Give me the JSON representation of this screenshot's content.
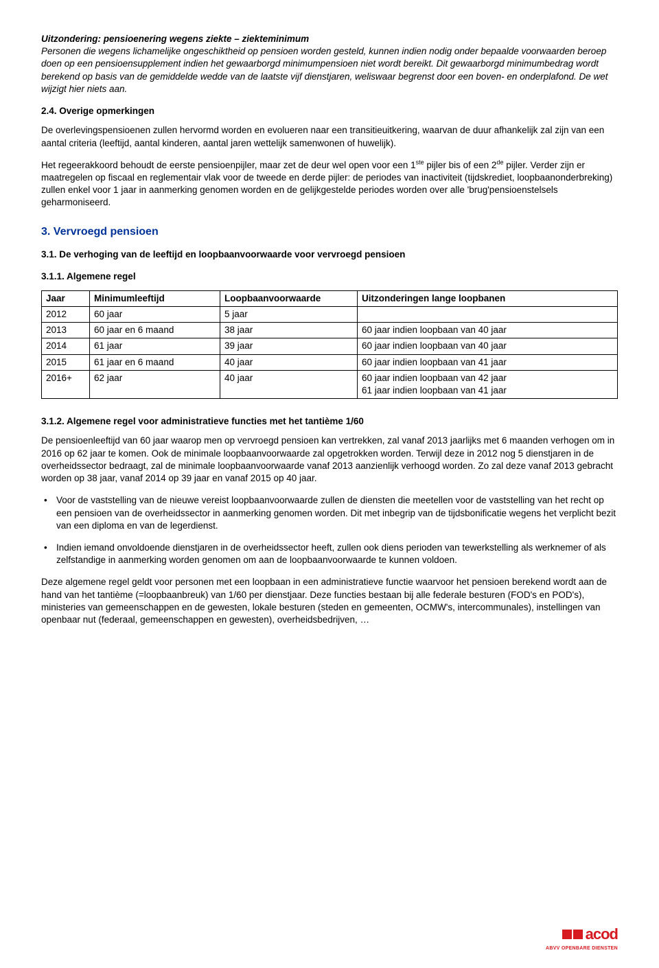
{
  "exception": {
    "title": "Uitzondering:  pensioenering wegens ziekte – ziekteminimum",
    "body": "Personen die wegens lichamelijke ongeschiktheid op pensioen worden gesteld, kunnen indien nodig onder bepaalde voorwaarden beroep doen op een pensioensupplement indien het gewaarborgd minimumpensioen niet wordt bereikt. Dit gewaarborgd minimumbedrag wordt berekend op basis van de gemiddelde wedde van de laatste vijf dienstjaren, weliswaar begrenst door een boven- en onderplafond. De wet wijzigt hier niets aan."
  },
  "s24": {
    "heading": "2.4.   Overige opmerkingen",
    "p1": "De overlevingspensioenen zullen hervormd worden en evolueren naar een transitieuitkering, waarvan de duur afhankelijk zal zijn van een aantal criteria (leeftijd, aantal kinderen, aantal jaren wettelijk samenwonen of huwelijk).",
    "p2a": "Het regeerakkoord behoudt de eerste pensioenpijler, maar zet de deur wel open voor een 1",
    "p2b": " pijler bis of een 2",
    "p2c": " pijler. Verder zijn er maatregelen op fiscaal en reglementair vlak voor de tweede en derde pijler: de periodes van inactiviteit (tijdskrediet, loopbaanonderbreking) zullen enkel voor 1 jaar in aanmerking genomen worden en de gelijkgestelde periodes worden over alle 'brug'pensioenstelsels geharmoniseerd.",
    "sup1": "ste",
    "sup2": "de"
  },
  "s3": {
    "title": "3. Vervroegd pensioen"
  },
  "s31": {
    "title": "3.1.   De verhoging van de leeftijd en loopbaanvoorwaarde voor vervroegd pensioen"
  },
  "s311": {
    "title": "3.1.1. Algemene regel",
    "columns": [
      "Jaar",
      "Minimumleeftijd",
      "Loopbaanvoorwaarde",
      "Uitzonderingen lange loopbanen"
    ],
    "rows": [
      [
        "2012",
        "60 jaar",
        "5 jaar",
        ""
      ],
      [
        "2013",
        "60 jaar en 6 maand",
        "38 jaar",
        "60 jaar indien loopbaan van 40 jaar"
      ],
      [
        "2014",
        "61 jaar",
        "39 jaar",
        "60 jaar indien loopbaan van 40 jaar"
      ],
      [
        "2015",
        "61 jaar en 6 maand",
        "40 jaar",
        "60 jaar indien loopbaan van 41 jaar"
      ],
      [
        "2016+",
        "62 jaar",
        "40 jaar",
        "60 jaar indien loopbaan van 42 jaar\n61 jaar indien loopbaan van 41 jaar"
      ]
    ]
  },
  "s312": {
    "title": "3.1.2. Algemene regel voor administratieve functies met het tantième 1/60",
    "p1": "De pensioenleeftijd van 60 jaar waarop men op vervroegd pensioen kan vertrekken, zal vanaf 2013 jaarlijks met 6 maanden verhogen om in 2016 op 62 jaar te komen. Ook de minimale loopbaanvoorwaarde zal opgetrokken worden. Terwijl deze in 2012 nog 5 dienstjaren in de overheidssector bedraagt, zal de minimale loopbaanvoorwaarde vanaf 2013 aanzienlijk verhoogd worden. Zo zal deze vanaf 2013 gebracht worden op 38 jaar, vanaf 2014 op 39 jaar en vanaf 2015 op 40 jaar.",
    "b1": "Voor de vaststelling van de nieuwe vereist loopbaanvoorwaarde zullen de diensten die meetellen voor de vaststelling van het recht op een pensioen van de overheidssector in aanmerking genomen worden. Dit met inbegrip van de tijdsbonificatie wegens het verplicht bezit van een diploma en van de legerdienst.",
    "b2": "Indien iemand onvoldoende dienstjaren in de overheidssector heeft, zullen ook diens perioden van tewerkstelling als werknemer of als zelfstandige in aanmerking worden genomen om aan de loopbaanvoorwaarde te kunnen voldoen.",
    "p2": "Deze algemene regel geldt voor personen met een loopbaan in een administratieve functie waarvoor het pensioen berekend wordt aan de hand van het tantième (=loopbaanbreuk) van 1/60 per dienstjaar. Deze functies bestaan bij alle federale besturen (FOD's en POD's), ministeries van gemeenschappen en de gewesten, lokale besturen (steden en gemeenten, OCMW's, intercommunales), instellingen van openbaar nut (federaal, gemeenschappen en gewesten), overheidsbedrijven, …"
  },
  "logo": {
    "text": "acod",
    "sub": "ABVV OPENBARE DIENSTEN",
    "color": "#d71920"
  }
}
